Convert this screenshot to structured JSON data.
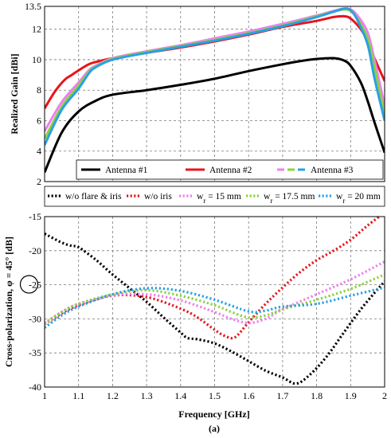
{
  "figure_label": "(a)",
  "chart_data": [
    {
      "type": "line",
      "ylabel": "Realized Gain [dBi]",
      "ylim": [
        2,
        13.5
      ],
      "yticks": [
        "2",
        "4",
        "6",
        "8",
        "10",
        "12",
        "13.5"
      ],
      "xlim": [
        1,
        2
      ],
      "grid": true,
      "legend_position": "bottom-inside",
      "legend": [
        {
          "label": "Antenna #1",
          "color": "#000000"
        },
        {
          "label": "Antenna #2",
          "color": "#e8141a"
        },
        {
          "label": "Antenna #3",
          "colors": [
            "#f07ef0",
            "#8cd23c",
            "#2aa0e6"
          ],
          "dash_prefix": "-.-"
        }
      ],
      "series": [
        {
          "name": "Antenna #1",
          "color": "#000000",
          "x": [
            1,
            1.05,
            1.1,
            1.15,
            1.2,
            1.3,
            1.4,
            1.5,
            1.6,
            1.7,
            1.75,
            1.8,
            1.85,
            1.88,
            1.9,
            1.93,
            1.95,
            1.97,
            2.0
          ],
          "y": [
            2.6,
            5.2,
            6.6,
            7.3,
            7.7,
            8.0,
            8.35,
            8.75,
            9.25,
            9.7,
            9.9,
            10.05,
            10.1,
            9.95,
            9.6,
            8.5,
            7.3,
            5.9,
            3.9
          ]
        },
        {
          "name": "Antenna #2",
          "color": "#e8141a",
          "x": [
            1,
            1.03,
            1.06,
            1.08,
            1.1,
            1.13,
            1.16,
            1.2,
            1.3,
            1.4,
            1.5,
            1.6,
            1.7,
            1.8,
            1.85,
            1.88,
            1.9,
            1.93,
            1.95,
            1.97,
            2.0
          ],
          "y": [
            6.8,
            7.9,
            8.7,
            9.0,
            9.3,
            9.7,
            9.9,
            10.1,
            10.45,
            10.8,
            11.2,
            11.65,
            12.15,
            12.55,
            12.8,
            12.85,
            12.7,
            12.0,
            11.2,
            10.1,
            8.6
          ]
        },
        {
          "name": "w_r = 15 mm",
          "color": "#f07ef0",
          "x": [
            1,
            1.05,
            1.1,
            1.13,
            1.15,
            1.2,
            1.3,
            1.4,
            1.5,
            1.6,
            1.7,
            1.8,
            1.85,
            1.88,
            1.9,
            1.92,
            1.95,
            1.97,
            2.0
          ],
          "y": [
            5.3,
            7.2,
            8.5,
            9.3,
            9.6,
            10.1,
            10.55,
            10.95,
            11.4,
            11.85,
            12.35,
            12.9,
            13.2,
            13.35,
            13.3,
            12.9,
            11.8,
            10.0,
            7.0
          ]
        },
        {
          "name": "w_r = 17.5 mm",
          "color": "#8cd23c",
          "x": [
            1,
            1.05,
            1.1,
            1.13,
            1.15,
            1.2,
            1.3,
            1.4,
            1.5,
            1.6,
            1.7,
            1.8,
            1.85,
            1.88,
            1.9,
            1.92,
            1.95,
            1.97,
            2.0
          ],
          "y": [
            4.8,
            6.9,
            8.3,
            9.2,
            9.55,
            10.05,
            10.5,
            10.9,
            11.3,
            11.75,
            12.25,
            12.85,
            13.15,
            13.3,
            13.2,
            12.7,
            11.4,
            9.5,
            6.4
          ]
        },
        {
          "name": "w_r = 20 mm",
          "color": "#2aa0e6",
          "x": [
            1,
            1.05,
            1.1,
            1.13,
            1.15,
            1.2,
            1.3,
            1.4,
            1.5,
            1.6,
            1.7,
            1.8,
            1.85,
            1.88,
            1.9,
            1.92,
            1.95,
            1.97,
            2.0
          ],
          "y": [
            4.4,
            6.7,
            8.1,
            9.1,
            9.5,
            10.0,
            10.45,
            10.85,
            11.25,
            11.7,
            12.2,
            12.8,
            13.15,
            13.35,
            13.25,
            12.6,
            11.0,
            8.8,
            6.0
          ]
        }
      ]
    },
    {
      "type": "line",
      "xlabel": "Frequency [GHz]",
      "ylabel": "Cross-polarization, φ = 45° [dB]",
      "ylabel_circled": "-25",
      "xlim": [
        1,
        2
      ],
      "ylim": [
        -40,
        -15
      ],
      "xticks": [
        "1",
        "1.1",
        "1.2",
        "1.3",
        "1.4",
        "1.5",
        "1.6",
        "1.7",
        "1.8",
        "1.9",
        "2"
      ],
      "yticks": [
        "-15",
        "-20",
        "-25",
        "-30",
        "-35",
        "-40"
      ],
      "grid": true,
      "legend_position": "top-outside",
      "legend": [
        {
          "label": "w/o flare & iris",
          "color": "#000000"
        },
        {
          "label": "w/o iris",
          "color": "#e8141a"
        },
        {
          "label": "w",
          "sub": "r",
          "suffix": " = 15 mm",
          "color": "#f07ef0"
        },
        {
          "label": "w",
          "sub": "r",
          "suffix": " = 17.5 mm",
          "color": "#8cd23c"
        },
        {
          "label": "w",
          "sub": "r",
          "suffix": " = 20 mm",
          "color": "#2aa0e6"
        }
      ],
      "series": [
        {
          "name": "w/o flare & iris",
          "color": "#000000",
          "x": [
            1,
            1.05,
            1.08,
            1.1,
            1.15,
            1.2,
            1.25,
            1.3,
            1.35,
            1.4,
            1.42,
            1.45,
            1.5,
            1.55,
            1.6,
            1.65,
            1.7,
            1.74,
            1.78,
            1.83,
            1.88,
            1.93,
            1.97,
            2.0
          ],
          "y": [
            -17.5,
            -18.8,
            -19.3,
            -19.5,
            -21.3,
            -23.5,
            -25.5,
            -27.5,
            -29.8,
            -32.0,
            -32.8,
            -33.0,
            -33.6,
            -34.8,
            -36.2,
            -37.6,
            -38.6,
            -39.5,
            -38.2,
            -35.5,
            -32.0,
            -28.6,
            -26.2,
            -24.5
          ]
        },
        {
          "name": "w/o iris",
          "color": "#e8141a",
          "x": [
            1,
            1.05,
            1.1,
            1.2,
            1.3,
            1.4,
            1.45,
            1.5,
            1.53,
            1.56,
            1.6,
            1.65,
            1.7,
            1.75,
            1.8,
            1.85,
            1.9,
            1.95,
            2.0
          ],
          "y": [
            -30.8,
            -29.2,
            -28.0,
            -26.6,
            -26.8,
            -28.5,
            -29.8,
            -31.6,
            -32.5,
            -32.7,
            -30.5,
            -27.8,
            -25.4,
            -23.2,
            -21.4,
            -20.0,
            -18.4,
            -16.3,
            -14.4
          ]
        },
        {
          "name": "w_r = 15 mm",
          "color": "#f07ef0",
          "x": [
            1,
            1.05,
            1.1,
            1.2,
            1.3,
            1.4,
            1.5,
            1.55,
            1.6,
            1.65,
            1.7,
            1.8,
            1.9,
            2.0
          ],
          "y": [
            -30.6,
            -29.0,
            -27.8,
            -26.6,
            -26.4,
            -27.3,
            -29.0,
            -30.0,
            -30.6,
            -30.0,
            -28.6,
            -26.4,
            -24.2,
            -21.6
          ]
        },
        {
          "name": "w_r = 17.5 mm",
          "color": "#8cd23c",
          "x": [
            1,
            1.05,
            1.1,
            1.2,
            1.3,
            1.4,
            1.5,
            1.55,
            1.6,
            1.65,
            1.7,
            1.8,
            1.9,
            2.0
          ],
          "y": [
            -30.8,
            -29.0,
            -27.8,
            -26.4,
            -25.8,
            -26.6,
            -28.0,
            -29.0,
            -29.8,
            -29.5,
            -28.6,
            -27.2,
            -25.6,
            -23.5
          ]
        },
        {
          "name": "w_r = 20 mm",
          "color": "#2aa0e6",
          "x": [
            1,
            1.05,
            1.1,
            1.2,
            1.3,
            1.4,
            1.5,
            1.6,
            1.65,
            1.7,
            1.8,
            1.9,
            2.0
          ],
          "y": [
            -31.3,
            -29.5,
            -28.2,
            -26.4,
            -25.5,
            -25.9,
            -27.2,
            -28.9,
            -28.8,
            -28.2,
            -27.8,
            -26.6,
            -25.4
          ]
        }
      ]
    }
  ]
}
